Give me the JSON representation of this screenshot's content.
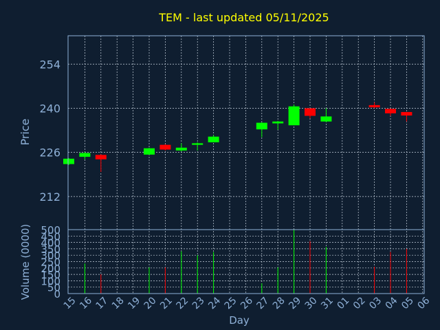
{
  "chart_data": {
    "type": "candlestick",
    "title": "TEM - last updated 05/11/2025",
    "xlabel": "Day",
    "ylabel_price": "Price",
    "ylabel_volume": "Volume (0000)",
    "x_ticks": [
      "15",
      "16",
      "17",
      "18",
      "19",
      "20",
      "21",
      "22",
      "23",
      "24",
      "25",
      "26",
      "27",
      "28",
      "29",
      "30",
      "31",
      "01",
      "02",
      "03",
      "04",
      "05",
      "06"
    ],
    "price_ticks": [
      212,
      226,
      240,
      254
    ],
    "price_range": [
      201.5,
      263
    ],
    "volume_ticks": [
      0,
      50,
      100,
      150,
      200,
      250,
      300,
      350,
      400,
      450,
      500
    ],
    "volume_range": [
      0,
      500
    ],
    "grid": true,
    "colors": {
      "up": "#00ff00",
      "down": "#ff0000",
      "title": "#ffff00",
      "axis": "#8fb1d8"
    },
    "candles": [
      {
        "day": "15",
        "open": 222.3,
        "high": 224.2,
        "low": 222.0,
        "close": 224.0,
        "volume": 0
      },
      {
        "day": "16",
        "open": 224.6,
        "high": 226.1,
        "low": 223.8,
        "close": 225.8,
        "volume": 235
      },
      {
        "day": "17",
        "open": 225.2,
        "high": 225.4,
        "low": 219.8,
        "close": 223.8,
        "volume": 150
      },
      {
        "day": "20",
        "open": 225.3,
        "high": 227.5,
        "low": 225.3,
        "close": 227.3,
        "volume": 205
      },
      {
        "day": "21",
        "open": 228.4,
        "high": 228.6,
        "low": 226.6,
        "close": 226.9,
        "volume": 205
      },
      {
        "day": "22",
        "open": 226.6,
        "high": 228.9,
        "low": 226.3,
        "close": 227.5,
        "volume": 330
      },
      {
        "day": "23",
        "open": 228.4,
        "high": 229.2,
        "low": 226.6,
        "close": 228.9,
        "volume": 300
      },
      {
        "day": "24",
        "open": 229.2,
        "high": 231.5,
        "low": 229.2,
        "close": 231.0,
        "volume": 325
      },
      {
        "day": "27",
        "open": 233.3,
        "high": 235.5,
        "low": 230.8,
        "close": 235.4,
        "volume": 80
      },
      {
        "day": "28",
        "open": 235.2,
        "high": 236.0,
        "low": 233.2,
        "close": 235.8,
        "volume": 205
      },
      {
        "day": "29",
        "open": 234.6,
        "high": 241.2,
        "low": 234.6,
        "close": 240.6,
        "volume": 500
      },
      {
        "day": "30",
        "open": 240.0,
        "high": 240.0,
        "low": 236.8,
        "close": 237.6,
        "volume": 410
      },
      {
        "day": "31",
        "open": 235.8,
        "high": 240.0,
        "low": 235.6,
        "close": 237.4,
        "volume": 365
      },
      {
        "day": "03",
        "open": 241.0,
        "high": 241.9,
        "low": 240.0,
        "close": 240.3,
        "volume": 210
      },
      {
        "day": "04",
        "open": 239.8,
        "high": 240.0,
        "low": 237.6,
        "close": 238.4,
        "volume": 325
      },
      {
        "day": "05",
        "open": 238.8,
        "high": 238.8,
        "low": 235.8,
        "close": 237.7,
        "volume": 350
      }
    ]
  }
}
